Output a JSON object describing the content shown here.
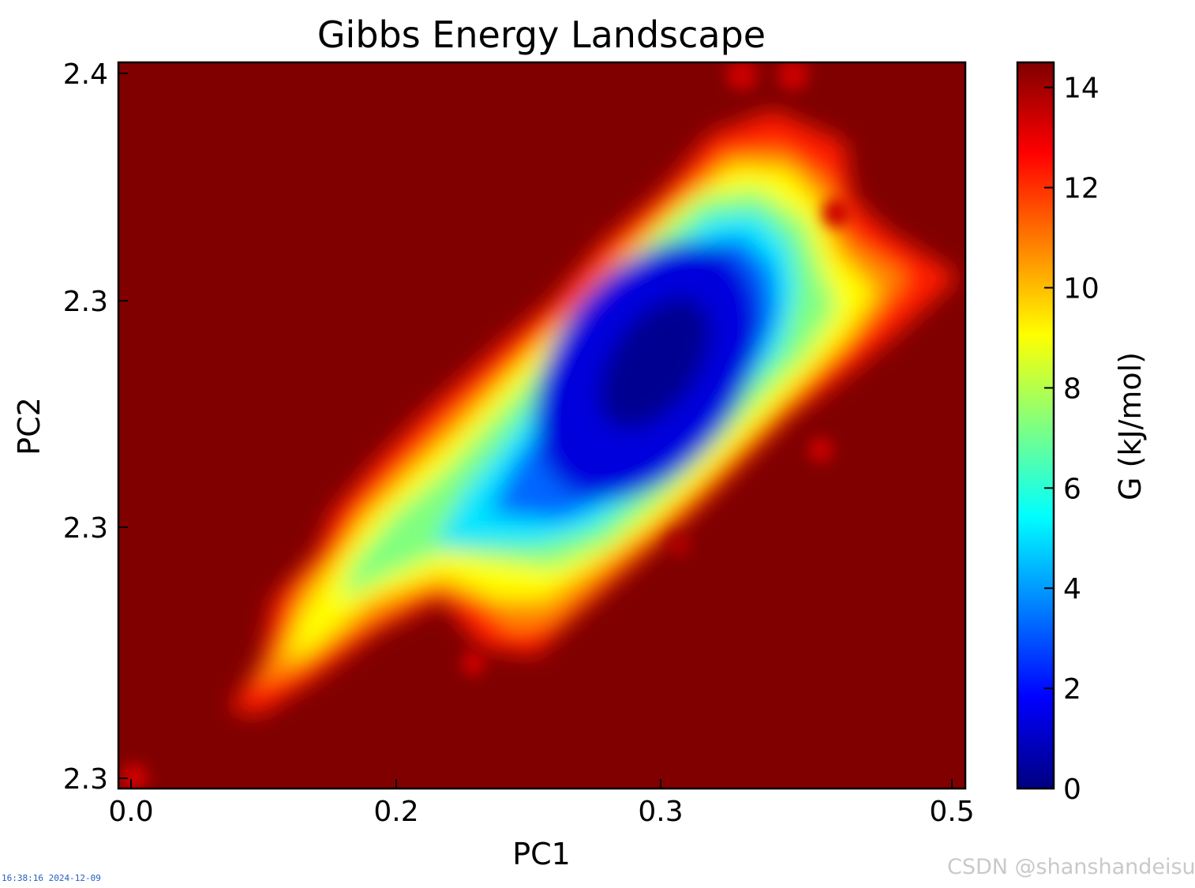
{
  "chart_data": {
    "type": "heatmap",
    "title": "Gibbs Energy Landscape",
    "xlabel": "PC1",
    "ylabel": "PC2",
    "x_ticks": [
      "0.0",
      "0.2",
      "0.3",
      "0.5"
    ],
    "y_ticks": [
      "2.4",
      "2.3",
      "2.3",
      "2.3"
    ],
    "colorbar": {
      "label": "G (kJ/mol)",
      "ticks": [
        "0",
        "2",
        "4",
        "6",
        "8",
        "10",
        "12",
        "14"
      ],
      "range": [
        0,
        14.5
      ],
      "colormap": "jet"
    },
    "colors": {
      "background": "#800000",
      "minimum": "#000080"
    }
  },
  "stamp_text": "16:38:16 2024-12-09",
  "watermark_text": "CSDN @shanshandeisu"
}
